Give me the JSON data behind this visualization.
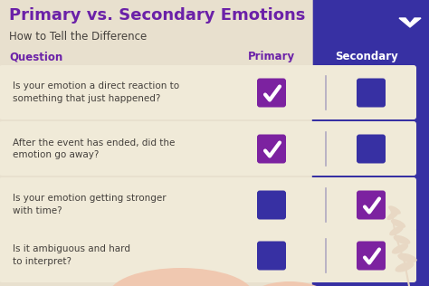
{
  "title": "Primary vs. Secondary Emotions",
  "subtitle": "How to Tell the Difference",
  "col_question": "Question",
  "col_primary": "Primary",
  "col_secondary": "Secondary",
  "bg_color": "#e8e0ce",
  "dark_bg": "#3730a3",
  "card_color": "#f0ead8",
  "purple_check": "#7c22a0",
  "dark_purple_box": "#3730a3",
  "title_color": "#6b21a8",
  "subtitle_color": "#44403c",
  "question_color": "#6b21a8",
  "row_text_color": "#44403c",
  "header_primary_color": "#6b21a8",
  "header_secondary_color": "#ffffff",
  "divider_color": "#b0a8c0",
  "leaf_color": "#e8d8c4",
  "cloud_color": "#f0c8b0",
  "rows": [
    {
      "question": "Is your emotion a direct reaction to\nsomething that just happened?",
      "primary_checked": true,
      "secondary_checked": false
    },
    {
      "question": "After the event has ended, did the\nemotion go away?",
      "primary_checked": true,
      "secondary_checked": false
    },
    {
      "question": "Is your emotion getting stronger\nwith time?",
      "primary_checked": false,
      "secondary_checked": true
    },
    {
      "question": "Is it ambiguous and hard\nto interpret?",
      "primary_checked": false,
      "secondary_checked": true
    }
  ],
  "figw": 4.74,
  "figh": 3.16,
  "dpi": 100
}
